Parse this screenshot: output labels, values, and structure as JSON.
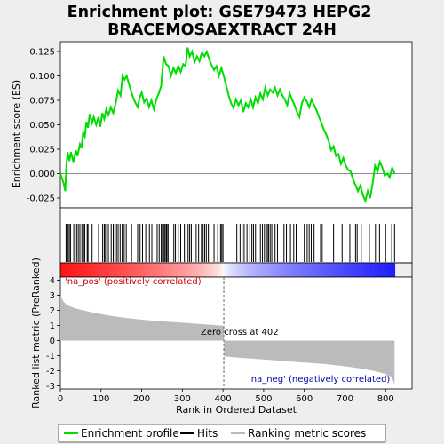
{
  "chart_data": {
    "type": "line",
    "title_line1": "Enrichment plot: GSE79473 HEPG2",
    "title_line2": "BRACEMOSAEXTRACT 24H",
    "es_panel": {
      "ylabel": "Enrichment score (ES)",
      "ylim": [
        -0.035,
        0.135
      ],
      "yticks": [
        -0.025,
        0.0,
        0.025,
        0.05,
        0.075,
        0.1,
        0.125
      ],
      "ytick_labels": [
        "-0.025",
        "0.000",
        "0.025",
        "0.050",
        "0.075",
        "0.100",
        "0.125"
      ],
      "line_color": "#00dd00",
      "profile": [
        [
          0,
          0.0
        ],
        [
          8,
          -0.01
        ],
        [
          12,
          -0.018
        ],
        [
          15,
          0.01
        ],
        [
          18,
          0.022
        ],
        [
          22,
          0.013
        ],
        [
          26,
          0.022
        ],
        [
          32,
          0.012
        ],
        [
          38,
          0.024
        ],
        [
          42,
          0.018
        ],
        [
          48,
          0.03
        ],
        [
          52,
          0.026
        ],
        [
          56,
          0.042
        ],
        [
          60,
          0.038
        ],
        [
          64,
          0.053
        ],
        [
          68,
          0.047
        ],
        [
          72,
          0.061
        ],
        [
          78,
          0.052
        ],
        [
          82,
          0.058
        ],
        [
          88,
          0.05
        ],
        [
          94,
          0.058
        ],
        [
          98,
          0.048
        ],
        [
          103,
          0.062
        ],
        [
          108,
          0.056
        ],
        [
          113,
          0.066
        ],
        [
          118,
          0.06
        ],
        [
          124,
          0.068
        ],
        [
          130,
          0.062
        ],
        [
          136,
          0.072
        ],
        [
          142,
          0.085
        ],
        [
          148,
          0.08
        ],
        [
          153,
          0.1
        ],
        [
          158,
          0.096
        ],
        [
          163,
          0.1
        ],
        [
          170,
          0.09
        ],
        [
          177,
          0.08
        ],
        [
          184,
          0.073
        ],
        [
          190,
          0.068
        ],
        [
          195,
          0.078
        ],
        [
          200,
          0.083
        ],
        [
          206,
          0.073
        ],
        [
          212,
          0.077
        ],
        [
          218,
          0.068
        ],
        [
          224,
          0.075
        ],
        [
          230,
          0.066
        ],
        [
          236,
          0.076
        ],
        [
          242,
          0.082
        ],
        [
          248,
          0.09
        ],
        [
          254,
          0.12
        ],
        [
          260,
          0.112
        ],
        [
          266,
          0.11
        ],
        [
          272,
          0.1
        ],
        [
          278,
          0.108
        ],
        [
          284,
          0.103
        ],
        [
          290,
          0.11
        ],
        [
          296,
          0.104
        ],
        [
          302,
          0.112
        ],
        [
          308,
          0.11
        ],
        [
          313,
          0.129
        ],
        [
          318,
          0.12
        ],
        [
          324,
          0.125
        ],
        [
          330,
          0.114
        ],
        [
          336,
          0.12
        ],
        [
          342,
          0.115
        ],
        [
          348,
          0.124
        ],
        [
          354,
          0.12
        ],
        [
          360,
          0.125
        ],
        [
          366,
          0.117
        ],
        [
          372,
          0.111
        ],
        [
          378,
          0.106
        ],
        [
          384,
          0.11
        ],
        [
          390,
          0.1
        ],
        [
          396,
          0.108
        ],
        [
          402,
          0.1
        ],
        [
          408,
          0.09
        ],
        [
          414,
          0.08
        ],
        [
          420,
          0.072
        ],
        [
          426,
          0.067
        ],
        [
          432,
          0.076
        ],
        [
          438,
          0.07
        ],
        [
          444,
          0.075
        ],
        [
          450,
          0.063
        ],
        [
          456,
          0.072
        ],
        [
          462,
          0.068
        ],
        [
          468,
          0.076
        ],
        [
          474,
          0.068
        ],
        [
          480,
          0.078
        ],
        [
          486,
          0.072
        ],
        [
          492,
          0.082
        ],
        [
          498,
          0.076
        ],
        [
          504,
          0.088
        ],
        [
          510,
          0.08
        ],
        [
          516,
          0.086
        ],
        [
          522,
          0.083
        ],
        [
          528,
          0.088
        ],
        [
          534,
          0.08
        ],
        [
          540,
          0.086
        ],
        [
          546,
          0.08
        ],
        [
          552,
          0.076
        ],
        [
          558,
          0.07
        ],
        [
          564,
          0.082
        ],
        [
          570,
          0.076
        ],
        [
          576,
          0.07
        ],
        [
          582,
          0.063
        ],
        [
          588,
          0.058
        ],
        [
          594,
          0.072
        ],
        [
          600,
          0.078
        ],
        [
          606,
          0.074
        ],
        [
          612,
          0.068
        ],
        [
          618,
          0.076
        ],
        [
          624,
          0.07
        ],
        [
          630,
          0.065
        ],
        [
          636,
          0.058
        ],
        [
          642,
          0.052
        ],
        [
          648,
          0.045
        ],
        [
          654,
          0.04
        ],
        [
          660,
          0.033
        ],
        [
          666,
          0.024
        ],
        [
          672,
          0.028
        ],
        [
          678,
          0.018
        ],
        [
          684,
          0.02
        ],
        [
          690,
          0.01
        ],
        [
          696,
          0.016
        ],
        [
          702,
          0.008
        ],
        [
          708,
          0.004
        ],
        [
          714,
          0.002
        ],
        [
          720,
          -0.006
        ],
        [
          726,
          -0.012
        ],
        [
          732,
          -0.018
        ],
        [
          738,
          -0.012
        ],
        [
          744,
          -0.022
        ],
        [
          750,
          -0.028
        ],
        [
          756,
          -0.018
        ],
        [
          762,
          -0.025
        ],
        [
          768,
          -0.01
        ],
        [
          774,
          0.008
        ],
        [
          780,
          0.002
        ],
        [
          786,
          0.012
        ],
        [
          792,
          0.006
        ],
        [
          798,
          -0.002
        ],
        [
          804,
          0.0
        ],
        [
          810,
          -0.004
        ],
        [
          816,
          0.006
        ],
        [
          822,
          0.0
        ]
      ]
    },
    "hits_panel": {
      "line_color": "#000000",
      "hits": [
        14,
        16,
        19,
        22,
        25,
        33,
        40,
        44,
        48,
        53,
        57,
        60,
        66,
        68,
        78,
        94,
        104,
        108,
        111,
        118,
        125,
        130,
        134,
        138,
        142,
        147,
        152,
        157,
        162,
        175,
        190,
        196,
        202,
        210,
        219,
        225,
        238,
        243,
        248,
        251,
        254,
        257,
        260,
        262,
        265,
        279,
        283,
        290,
        296,
        305,
        309,
        314,
        318,
        322,
        334,
        340,
        347,
        351,
        355,
        359,
        364,
        368,
        378,
        387,
        394,
        397,
        400,
        434,
        442,
        447,
        452,
        459,
        466,
        471,
        475,
        480,
        492,
        497,
        502,
        506,
        509,
        512,
        516,
        520,
        528,
        534,
        550,
        556,
        566,
        574,
        580,
        600,
        607,
        612,
        617,
        624,
        640,
        644,
        672,
        693,
        712,
        726,
        730,
        740,
        760,
        775,
        785,
        800,
        815,
        822
      ]
    },
    "ranking_panel": {
      "ylabel": "Ranked list metric (PreRanked)",
      "ylim": [
        -3.2,
        4.2
      ],
      "yticks": [
        -3,
        -2,
        -1,
        0,
        1,
        2,
        3,
        4
      ],
      "ytick_labels": [
        "-3",
        "-2",
        "-1",
        "0",
        "1",
        "2",
        "3",
        "4"
      ],
      "na_pos_label": "'na_pos' (positively correlated)",
      "na_neg_label": "'na_neg' (negatively correlated)",
      "zero_cross_label": "Zero cross at 402",
      "zero_cross": 402,
      "metric_profile": [
        [
          0,
          2.95
        ],
        [
          5,
          2.7
        ],
        [
          10,
          2.5
        ],
        [
          20,
          2.3
        ],
        [
          40,
          2.1
        ],
        [
          80,
          1.85
        ],
        [
          120,
          1.65
        ],
        [
          160,
          1.5
        ],
        [
          200,
          1.38
        ],
        [
          250,
          1.27
        ],
        [
          300,
          1.18
        ],
        [
          350,
          1.08
        ],
        [
          400,
          0.98
        ],
        [
          402,
          0.96
        ],
        [
          403,
          -1.05
        ],
        [
          450,
          -1.15
        ],
        [
          500,
          -1.25
        ],
        [
          550,
          -1.35
        ],
        [
          600,
          -1.45
        ],
        [
          650,
          -1.55
        ],
        [
          700,
          -1.7
        ],
        [
          740,
          -1.85
        ],
        [
          770,
          -2.0
        ],
        [
          800,
          -2.2
        ],
        [
          815,
          -2.4
        ],
        [
          822,
          -2.9
        ]
      ]
    },
    "xaxis": {
      "xlabel": "Rank in Ordered Dataset",
      "xlim": [
        0,
        865
      ],
      "xticks": [
        0,
        100,
        200,
        300,
        400,
        500,
        600,
        700,
        800
      ],
      "xtick_labels": [
        "0",
        "100",
        "200",
        "300",
        "400",
        "500",
        "600",
        "700",
        "800"
      ],
      "n_genes": 823
    },
    "legend": {
      "placement": "bottom",
      "items": [
        {
          "label": "Enrichment profile",
          "color": "#00dd00"
        },
        {
          "label": "Hits",
          "color": "#000000"
        },
        {
          "label": "Ranking metric scores",
          "color": "#bbbbbb"
        }
      ]
    }
  }
}
